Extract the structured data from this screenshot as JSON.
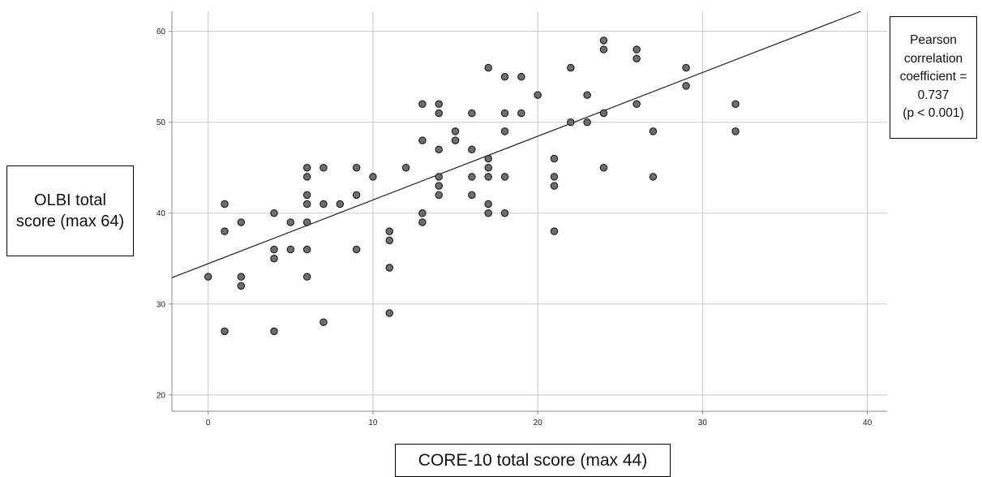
{
  "chart_data": {
    "type": "scatter",
    "xlabel": "CORE-10 total score (max 44)",
    "ylabel": "OLBI total score (max 64)",
    "annotation": "Pearson correlation coefficient = 0.737 (p < 0.001)",
    "annotation_lines": [
      "Pearson",
      "correlation",
      "coefficient =",
      "0.737",
      "(p < 0.001)"
    ],
    "xlim": [
      -2.2,
      41.2
    ],
    "ylim": [
      18.2,
      62.2
    ],
    "xticks": [
      0,
      10,
      20,
      30,
      40
    ],
    "yticks": [
      20,
      30,
      40,
      50,
      60
    ],
    "grid": true,
    "fit_line": {
      "x": [
        -2.2,
        39.6
      ],
      "y": [
        32.9,
        62.2
      ]
    },
    "points": [
      {
        "x": 0,
        "y": 33
      },
      {
        "x": 1,
        "y": 27
      },
      {
        "x": 1,
        "y": 38
      },
      {
        "x": 1,
        "y": 41
      },
      {
        "x": 2,
        "y": 32
      },
      {
        "x": 2,
        "y": 33
      },
      {
        "x": 2,
        "y": 39
      },
      {
        "x": 4,
        "y": 27
      },
      {
        "x": 4,
        "y": 35
      },
      {
        "x": 4,
        "y": 36
      },
      {
        "x": 4,
        "y": 40
      },
      {
        "x": 5,
        "y": 36
      },
      {
        "x": 5,
        "y": 39
      },
      {
        "x": 6,
        "y": 33
      },
      {
        "x": 6,
        "y": 36
      },
      {
        "x": 6,
        "y": 39
      },
      {
        "x": 6,
        "y": 41
      },
      {
        "x": 6,
        "y": 42
      },
      {
        "x": 6,
        "y": 44
      },
      {
        "x": 6,
        "y": 45
      },
      {
        "x": 7,
        "y": 28
      },
      {
        "x": 7,
        "y": 41
      },
      {
        "x": 7,
        "y": 45
      },
      {
        "x": 8,
        "y": 41
      },
      {
        "x": 9,
        "y": 36
      },
      {
        "x": 9,
        "y": 42
      },
      {
        "x": 9,
        "y": 45
      },
      {
        "x": 10,
        "y": 44
      },
      {
        "x": 11,
        "y": 29
      },
      {
        "x": 11,
        "y": 34
      },
      {
        "x": 11,
        "y": 37
      },
      {
        "x": 11,
        "y": 38
      },
      {
        "x": 12,
        "y": 45
      },
      {
        "x": 13,
        "y": 39
      },
      {
        "x": 13,
        "y": 40
      },
      {
        "x": 13,
        "y": 48
      },
      {
        "x": 13,
        "y": 52
      },
      {
        "x": 14,
        "y": 42
      },
      {
        "x": 14,
        "y": 43
      },
      {
        "x": 14,
        "y": 44
      },
      {
        "x": 14,
        "y": 47
      },
      {
        "x": 14,
        "y": 51
      },
      {
        "x": 14,
        "y": 52
      },
      {
        "x": 15,
        "y": 48
      },
      {
        "x": 15,
        "y": 49
      },
      {
        "x": 16,
        "y": 42
      },
      {
        "x": 16,
        "y": 44
      },
      {
        "x": 16,
        "y": 47
      },
      {
        "x": 16,
        "y": 51
      },
      {
        "x": 17,
        "y": 40
      },
      {
        "x": 17,
        "y": 41
      },
      {
        "x": 17,
        "y": 44
      },
      {
        "x": 17,
        "y": 45
      },
      {
        "x": 17,
        "y": 46
      },
      {
        "x": 17,
        "y": 56
      },
      {
        "x": 18,
        "y": 40
      },
      {
        "x": 18,
        "y": 44
      },
      {
        "x": 18,
        "y": 49
      },
      {
        "x": 18,
        "y": 51
      },
      {
        "x": 18,
        "y": 55
      },
      {
        "x": 19,
        "y": 51
      },
      {
        "x": 19,
        "y": 55
      },
      {
        "x": 20,
        "y": 53
      },
      {
        "x": 21,
        "y": 38
      },
      {
        "x": 21,
        "y": 43
      },
      {
        "x": 21,
        "y": 44
      },
      {
        "x": 21,
        "y": 46
      },
      {
        "x": 22,
        "y": 50
      },
      {
        "x": 22,
        "y": 56
      },
      {
        "x": 23,
        "y": 50
      },
      {
        "x": 23,
        "y": 53
      },
      {
        "x": 24,
        "y": 45
      },
      {
        "x": 24,
        "y": 51
      },
      {
        "x": 24,
        "y": 58
      },
      {
        "x": 24,
        "y": 59
      },
      {
        "x": 26,
        "y": 52
      },
      {
        "x": 26,
        "y": 57
      },
      {
        "x": 26,
        "y": 58
      },
      {
        "x": 27,
        "y": 44
      },
      {
        "x": 27,
        "y": 49
      },
      {
        "x": 29,
        "y": 54
      },
      {
        "x": 29,
        "y": 56
      },
      {
        "x": 32,
        "y": 49
      },
      {
        "x": 32,
        "y": 52
      }
    ],
    "colors": {
      "point_fill": "#6e6e6e",
      "point_stroke": "#1a1a1a",
      "grid": "#c8c8c8",
      "axis": "#8a8a8a",
      "fit_line": "#222222"
    }
  }
}
